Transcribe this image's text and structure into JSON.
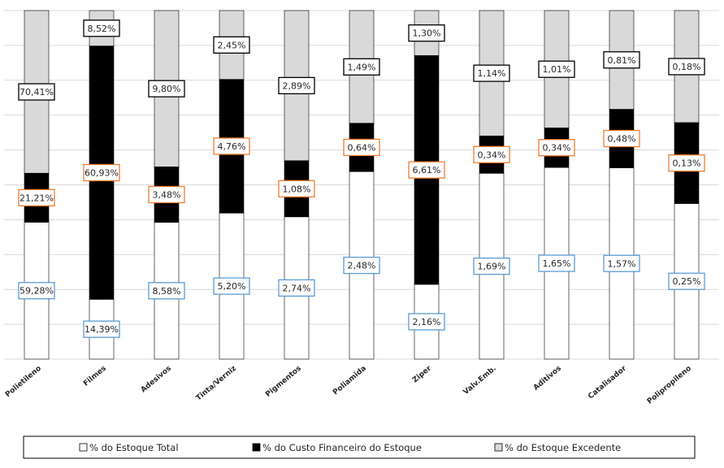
{
  "chart_data": {
    "type": "bar",
    "stacked": true,
    "normalized": true,
    "categories": [
      "Polietileno",
      "Filmes",
      "Adesivos",
      "Tinta/Verniz",
      "Pigmentos",
      "Poliamida",
      "Ziper",
      "Valv.Emb.",
      "Aditivos",
      "Catalisador",
      "Polipropileno"
    ],
    "series": [
      {
        "name": "% do Estoque Total",
        "color": "#ffffff",
        "label_border": "#5b9bd5",
        "values": [
          59.28,
          14.39,
          8.58,
          5.2,
          2.74,
          2.48,
          2.16,
          1.69,
          1.65,
          1.57,
          0.25
        ],
        "labels": [
          "59,28%",
          "14,39%",
          "8,58%",
          "5,20%",
          "2,74%",
          "2,48%",
          "2,16%",
          "1,69%",
          "1,65%",
          "1,57%",
          "0,25%"
        ]
      },
      {
        "name": "% do Custo Financeiro do Estoque",
        "color": "#000000",
        "label_border": "#ed7d31",
        "values": [
          21.21,
          60.93,
          3.48,
          4.76,
          1.08,
          0.64,
          6.61,
          0.34,
          0.34,
          0.48,
          0.13
        ],
        "labels": [
          "21,21%",
          "60,93%",
          "3,48%",
          "4,76%",
          "1,08%",
          "0,64%",
          "6,61%",
          "0,34%",
          "0,34%",
          "0,48%",
          "0,13%"
        ]
      },
      {
        "name": "% do Estoque Excedente",
        "color": "#d9d9d9",
        "label_border": "#000000",
        "values": [
          70.41,
          8.52,
          9.8,
          2.45,
          2.89,
          1.49,
          1.3,
          1.14,
          1.01,
          0.81,
          0.18
        ],
        "labels": [
          "70,41%",
          "8,52%",
          "9,80%",
          "2,45%",
          "2,89%",
          "1,49%",
          "1,30%",
          "1,14%",
          "1,01%",
          "0,81%",
          "0,18%"
        ]
      }
    ],
    "grid": true,
    "legend": "bottom"
  }
}
